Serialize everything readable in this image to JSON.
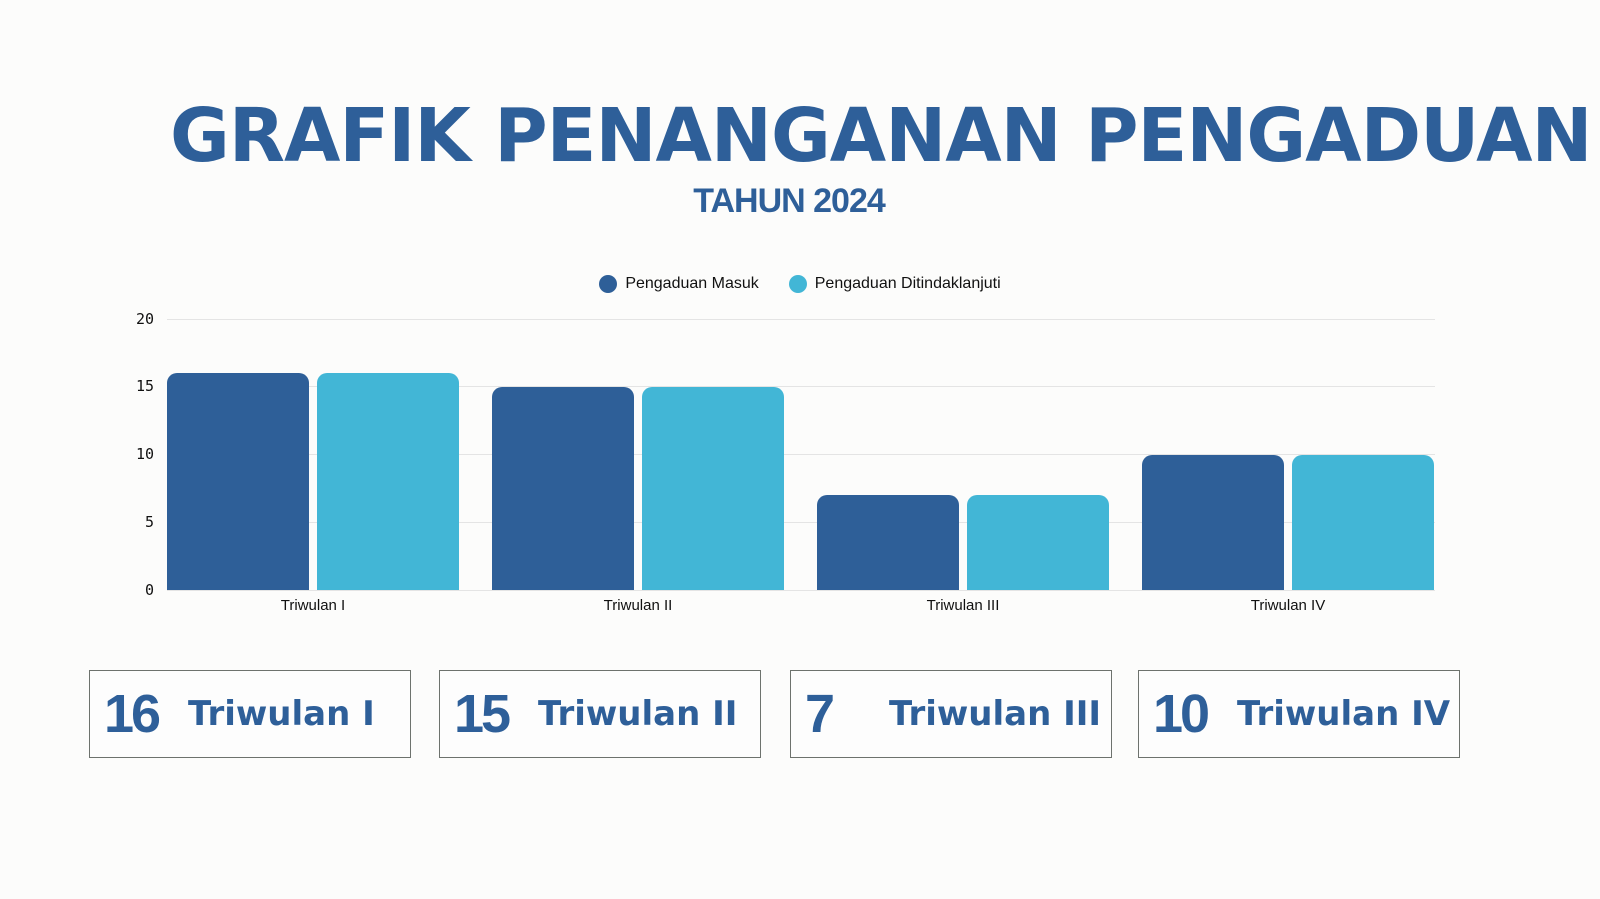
{
  "header": {
    "title": "GRAFIK PENANGANAN PENGADUAN",
    "subtitle": "TAHUN 2024"
  },
  "colors": {
    "primary": "#2e5f99",
    "series_masuk": "#2e5f98",
    "series_ditindaklanjuti": "#42b6d6",
    "background": "#fcfcfb"
  },
  "legend": [
    {
      "label": "Pengaduan Masuk",
      "color": "#2e5f98"
    },
    {
      "label": "Pengaduan Ditindaklanjuti",
      "color": "#42b6d6"
    }
  ],
  "y_ticks": [
    "20",
    "15",
    "10",
    "5",
    "0"
  ],
  "chart_data": {
    "type": "bar",
    "title": "GRAFIK PENANGANAN PENGADUAN",
    "subtitle": "TAHUN 2024",
    "categories": [
      "Triwulan I",
      "Triwulan II",
      "Triwulan III",
      "Triwulan IV"
    ],
    "series": [
      {
        "name": "Pengaduan Masuk",
        "values": [
          16,
          15,
          7,
          10
        ],
        "color": "#2e5f98"
      },
      {
        "name": "Pengaduan Ditindaklanjuti",
        "values": [
          16,
          15,
          7,
          10
        ],
        "color": "#42b6d6"
      }
    ],
    "xlabel": "",
    "ylabel": "",
    "ylim": [
      0,
      20
    ],
    "yticks": [
      0,
      5,
      10,
      15,
      20
    ],
    "grid": true,
    "legend_position": "top"
  },
  "cards": [
    {
      "value": "16",
      "label": "Triwulan I"
    },
    {
      "value": "15",
      "label": "Triwulan II"
    },
    {
      "value": "7",
      "label": "Triwulan III"
    },
    {
      "value": "10",
      "label": "Triwulan IV"
    }
  ]
}
